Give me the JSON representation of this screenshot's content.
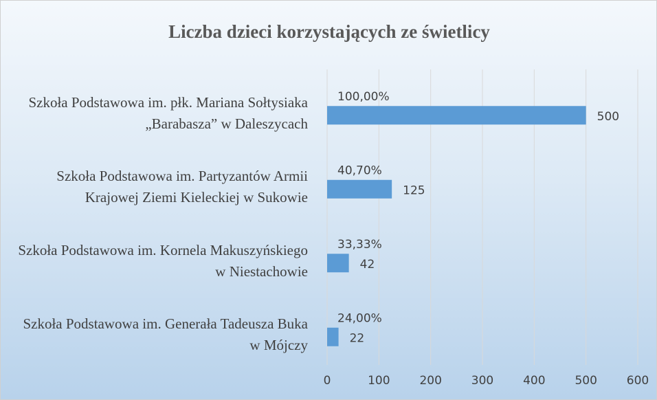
{
  "chart_data": {
    "type": "bar",
    "orientation": "horizontal",
    "title": "Liczba dzieci korzystających ze świetlicy",
    "categories": [
      "Szkoła Podstawowa im. Generała Tadeusza Buka w Mójczy",
      "Szkoła Podstawowa im. Kornela Makuszyńskiego w Niestachowie",
      "Szkoła Podstawowa im. Partyzantów Armii Krajowej Ziemi Kieleckiej w Sukowie",
      "Szkoła Podstawowa im. płk. Mariana Sołtysiaka „Barabasza” w Daleszycach"
    ],
    "values": [
      22,
      42,
      125,
      500
    ],
    "annotations": [
      "24,00%",
      "33,33%",
      "40,70%",
      "100,00%"
    ],
    "color": "#5b9bd5",
    "xlim": [
      0,
      600
    ],
    "xticks": [
      0,
      100,
      200,
      300,
      400,
      500,
      600
    ],
    "grid": true
  }
}
